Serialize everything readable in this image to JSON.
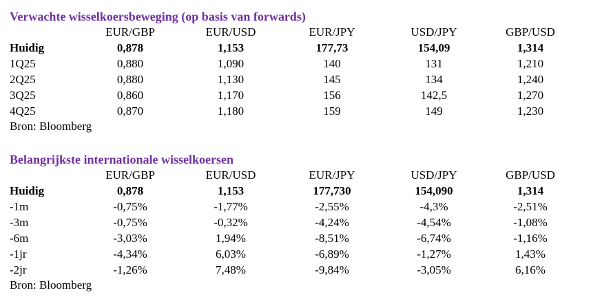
{
  "tables": [
    {
      "title": "Verwachte wisselkoersbeweging (op basis van forwards)",
      "columns": [
        "EUR/GBP",
        "EUR/USD",
        "EUR/JPY",
        "USD/JPY",
        "GBP/USD"
      ],
      "rows": [
        [
          "Huidig",
          "0,878",
          "1,153",
          "177,73",
          "154,09",
          "1,314"
        ],
        [
          "1Q25",
          "0,880",
          "1,090",
          "140",
          "131",
          "1,210"
        ],
        [
          "2Q25",
          "0,880",
          "1,130",
          "145",
          "134",
          "1,240"
        ],
        [
          "3Q25",
          "0,860",
          "1,170",
          "156",
          "142,5",
          "1,270"
        ],
        [
          "4Q25",
          "0,870",
          "1,180",
          "159",
          "149",
          "1,230"
        ]
      ],
      "source": "Bron: Bloomberg"
    },
    {
      "title": "Belangrijkste internationale wisselkoersen",
      "columns": [
        "EUR/GBP",
        "EUR/USD",
        "EUR/JPY",
        "USD/JPY",
        "GBP/USD"
      ],
      "rows": [
        [
          "Huidig",
          "0,878",
          "1,153",
          "177,730",
          "154,090",
          "1,314"
        ],
        [
          "-1m",
          "-0,75%",
          "-1,77%",
          "-2,55%",
          "-4,3%",
          "-2,51%"
        ],
        [
          "-3m",
          "-0,75%",
          "-0,32%",
          "-4,24%",
          "-4,54%",
          "-1,08%"
        ],
        [
          "-6m",
          "-3,03%",
          "1,94%",
          "-8,51%",
          "-6,74%",
          "-1,16%"
        ],
        [
          "-1jr",
          "-4,34%",
          "6,03%",
          "-6,89%",
          "-1,27%",
          "1,43%"
        ],
        [
          "-2jr",
          "-1,26%",
          "7,48%",
          "-9,84%",
          "-3,05%",
          "6,16%"
        ]
      ],
      "source": "Bron: Bloomberg"
    }
  ]
}
